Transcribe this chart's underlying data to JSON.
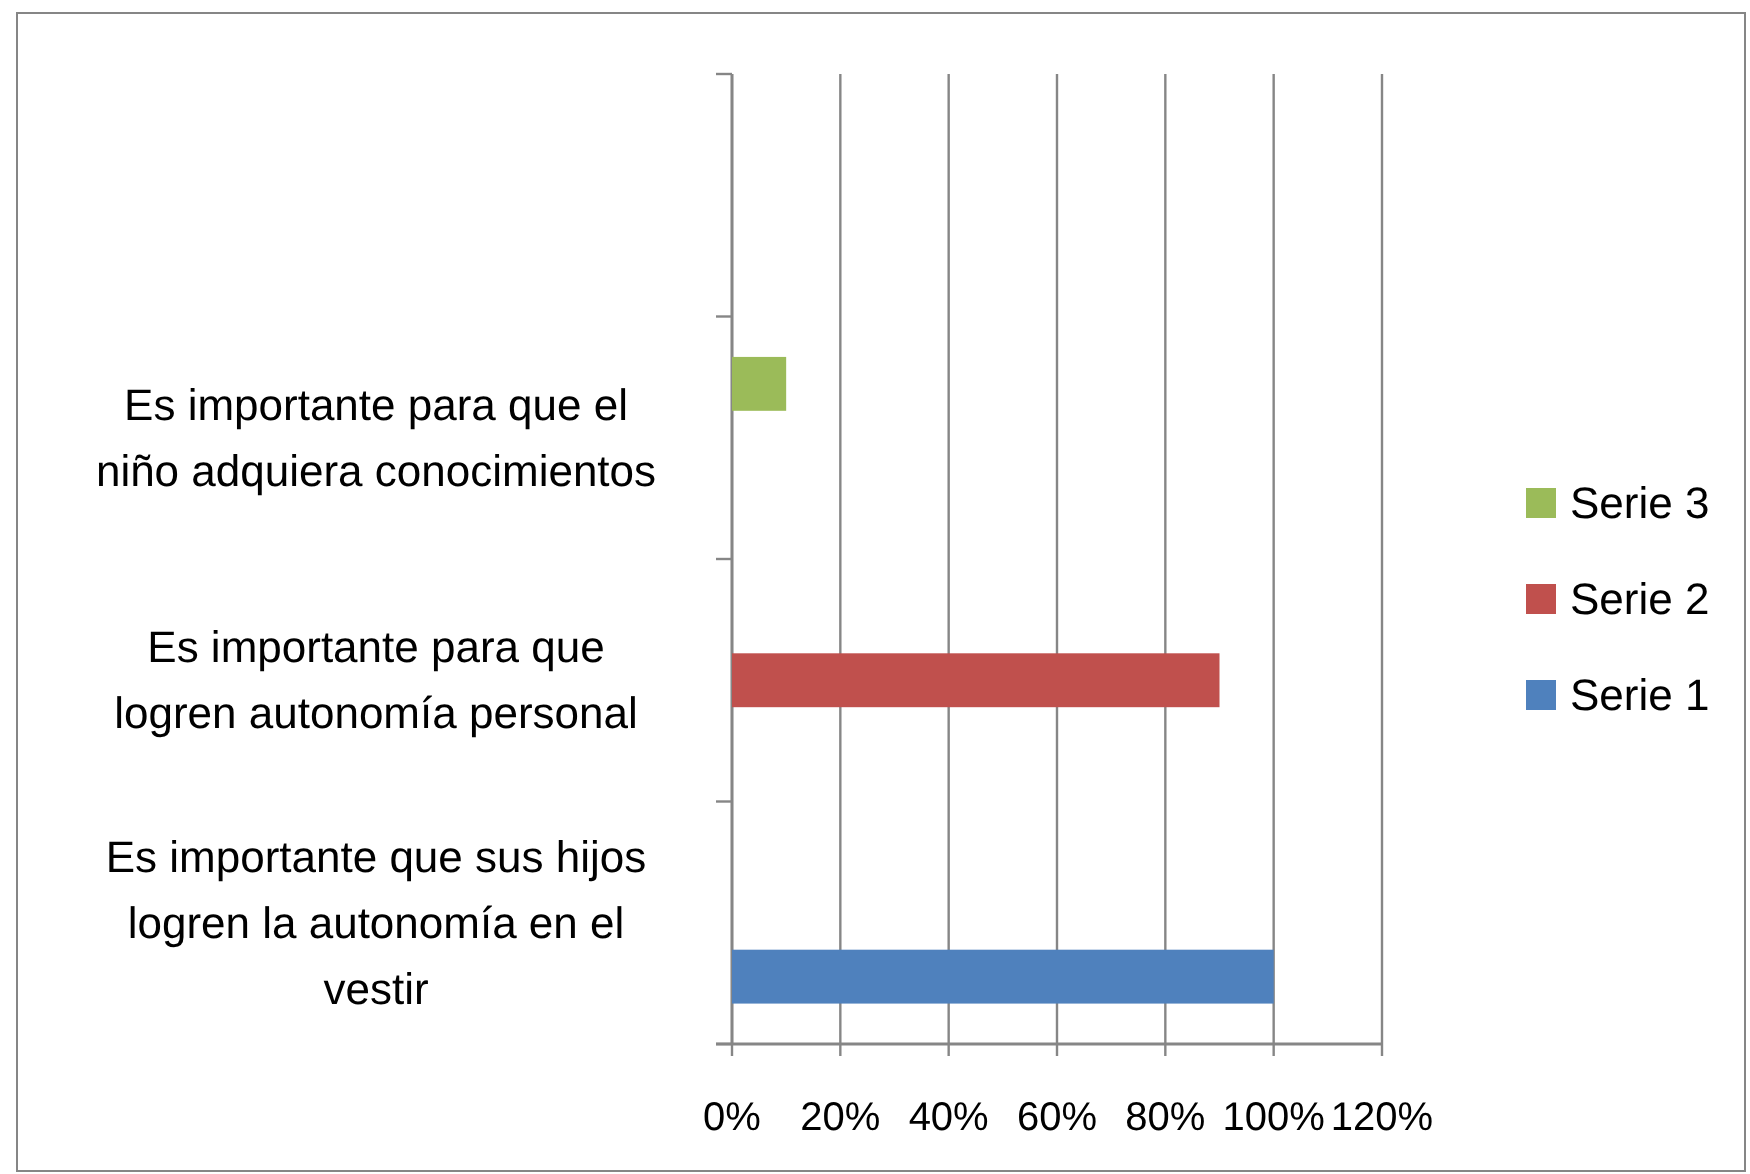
{
  "chart_data": {
    "type": "bar",
    "orientation": "horizontal",
    "categories": [
      null,
      "Es importante para que el niño adquiera conocimientos",
      "Es importante para que logren autonomía personal",
      "Es importante que sus hijos logren la autonomía en el vestir"
    ],
    "series": [
      {
        "name": "Serie 1",
        "color": "#4f81bd",
        "values": [
          null,
          null,
          null,
          100
        ]
      },
      {
        "name": "Serie 2",
        "color": "#c0504d",
        "values": [
          null,
          null,
          90,
          null
        ]
      },
      {
        "name": "Serie 3",
        "color": "#9bbb59",
        "values": [
          null,
          10,
          null,
          null
        ]
      }
    ],
    "xlim": [
      0,
      120
    ],
    "xticks": [
      {
        "value": 0,
        "label": "0%"
      },
      {
        "value": 20,
        "label": "20%"
      },
      {
        "value": 40,
        "label": "40%"
      },
      {
        "value": 60,
        "label": "60%"
      },
      {
        "value": 80,
        "label": "80%"
      },
      {
        "value": 100,
        "label": "100%"
      },
      {
        "value": 120,
        "label": "120%"
      }
    ],
    "grid": "x",
    "legend": "right"
  }
}
